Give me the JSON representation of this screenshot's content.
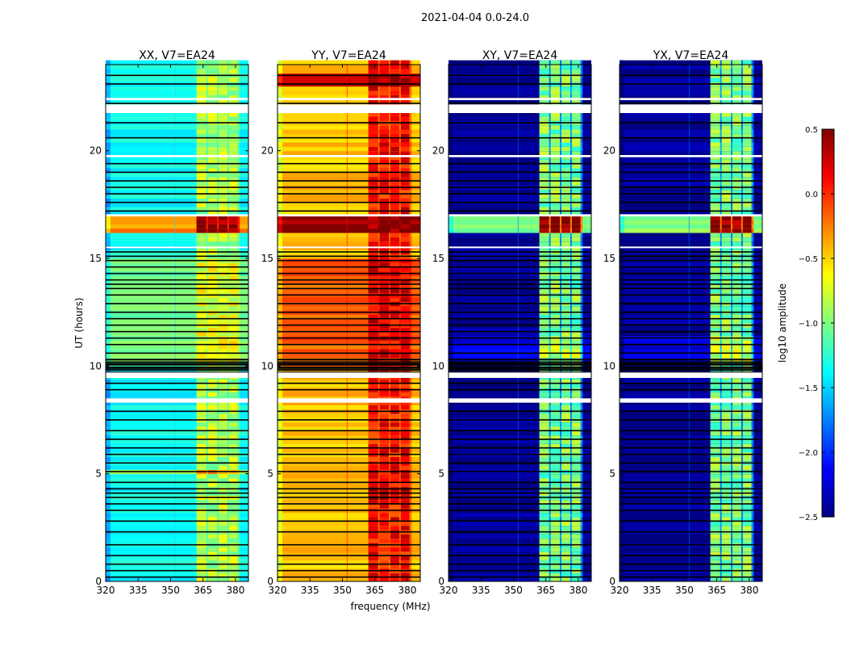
{
  "chart_data": {
    "type": "heatmap",
    "title": "2021-04-04 0.0-24.0",
    "xlabel": "frequency (MHz)",
    "ylabel": "UT (hours)",
    "xlim": [
      320,
      386
    ],
    "ylim": [
      0,
      24
    ],
    "xticks": [
      320,
      335,
      350,
      365,
      380
    ],
    "yticks": [
      0,
      5,
      10,
      15,
      20
    ],
    "colorbar": {
      "label": "log10 amplitude",
      "range": [
        -2.5,
        0.5
      ],
      "ticks": [
        "0.5",
        "0.0",
        "−0.5",
        "−1.0",
        "−1.5",
        "−2.0",
        "−2.5"
      ],
      "colormap": "jet"
    },
    "band_subbands_mhz": [
      [
        362,
        366.5
      ],
      [
        367.2,
        371.5
      ],
      [
        372.2,
        376.3
      ],
      [
        377,
        381
      ]
    ],
    "flagged_white_hours": [
      [
        21.75,
        22.15
      ],
      [
        22.35,
        22.45
      ],
      [
        9.45,
        9.7
      ],
      [
        8.3,
        8.5
      ],
      [
        16.95,
        17.05
      ],
      [
        15.5,
        15.55
      ],
      [
        19.7,
        19.8
      ]
    ],
    "flagged_black_hours": [
      23.5,
      23.1,
      22.2,
      21.3,
      20.6,
      19.4,
      19.0,
      18.6,
      18.3,
      18.0,
      17.6,
      17.2,
      15.3,
      15.1,
      14.9,
      14.6,
      14.3,
      14.0,
      13.8,
      13.6,
      13.3,
      12.9,
      12.5,
      12.2,
      11.9,
      11.6,
      11.3,
      11.0,
      10.6,
      10.3,
      10.1,
      9.9,
      9.2,
      8.9,
      7.9,
      7.5,
      7.0,
      6.6,
      6.2,
      5.9,
      5.5,
      5.1,
      4.6,
      4.3,
      4.1,
      3.9,
      3.6,
      3.3,
      2.8,
      2.3,
      1.7,
      1.2,
      0.8,
      0.5,
      0.2
    ],
    "panels": [
      {
        "title": "XX, V7=EA24",
        "base": -1.35,
        "band": -0.85,
        "periods": [
          {
            "hours": [
              16.1,
              16.9
            ],
            "base": -0.3,
            "band": 0.5
          },
          {
            "hours": [
              10,
              15
            ],
            "base": -1.05,
            "band": -0.7
          },
          {
            "hours": [
              5.0,
              5.3
            ],
            "base": -1.0,
            "band": -0.3
          }
        ]
      },
      {
        "title": "YY, V7=EA24",
        "base": -0.45,
        "band": 0.1,
        "periods": [
          {
            "hours": [
              16.1,
              16.9
            ],
            "base": 0.45,
            "band": 0.5
          },
          {
            "hours": [
              10,
              15
            ],
            "base": -0.15,
            "band": 0.2
          },
          {
            "hours": [
              3.8,
              4.4
            ],
            "base": -0.4,
            "band": 0.45
          },
          {
            "hours": [
              22.9,
              23.5
            ],
            "base": 0.3,
            "band": 0.4
          }
        ]
      },
      {
        "title": "XY, V7=EA24",
        "base": -2.45,
        "band": -1.0,
        "periods": [
          {
            "hours": [
              16.1,
              16.9
            ],
            "base": -1.0,
            "band": 0.5
          },
          {
            "hours": [
              10.2,
              11.4
            ],
            "base": -2.2,
            "band": -0.8
          }
        ]
      },
      {
        "title": "YX, V7=EA24",
        "base": -2.45,
        "band": -1.0,
        "periods": [
          {
            "hours": [
              16.1,
              16.9
            ],
            "base": -1.0,
            "band": 0.5
          },
          {
            "hours": [
              10.2,
              11.4
            ],
            "base": -2.2,
            "band": -0.8
          }
        ]
      }
    ]
  }
}
